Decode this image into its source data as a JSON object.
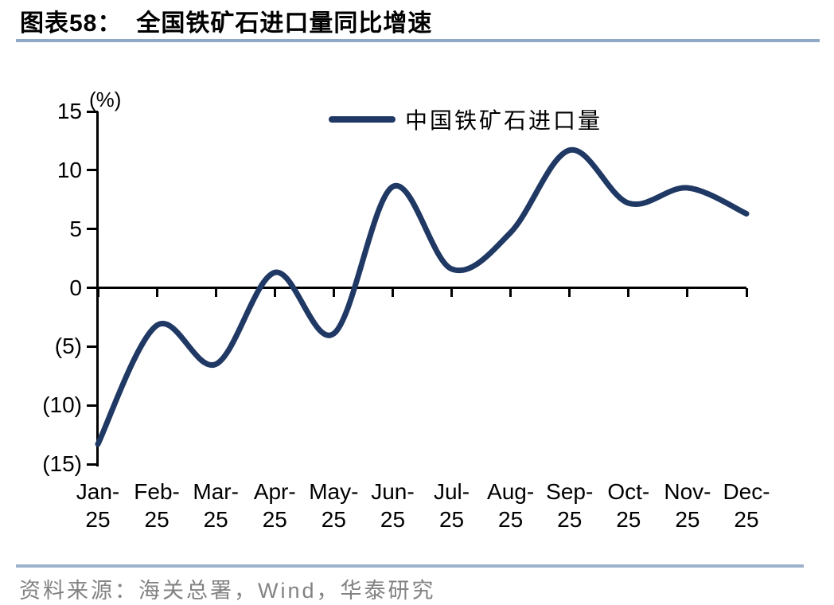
{
  "header": {
    "figure_label": "图表58：",
    "title": "全国铁矿石进口量同比增速"
  },
  "legend": {
    "label": "中国铁矿石进口量"
  },
  "y_axis": {
    "unit": "(%)",
    "tick_labels": [
      "15",
      "10",
      "5",
      "0",
      "(5)",
      "(10)",
      "(15)"
    ],
    "tick_values": [
      15,
      10,
      5,
      0,
      -5,
      -10,
      -15
    ]
  },
  "x_axis": {
    "labels": [
      "Jan-25",
      "Feb-25",
      "Mar-25",
      "Apr-25",
      "May-25",
      "Jun-25",
      "Jul-25",
      "Aug-25",
      "Sep-25",
      "Oct-25",
      "Nov-25",
      "Dec-25"
    ]
  },
  "source": "资料来源：海关总署，Wind，华泰研究",
  "colors": {
    "line": "#1F3864",
    "axis": "#000000",
    "divider_top": "#92A8C8",
    "divider_bottom": "#9DB1CB",
    "source_text": "#828282"
  },
  "chart_data": {
    "type": "line",
    "title": "全国铁矿石进口量同比增速",
    "categories": [
      "Jan-25",
      "Feb-25",
      "Mar-25",
      "Apr-25",
      "May-25",
      "Jun-25",
      "Jul-25",
      "Aug-25",
      "Sep-25",
      "Oct-25",
      "Nov-25",
      "Dec-25"
    ],
    "series": [
      {
        "name": "中国铁矿石进口量",
        "values": [
          -13.3,
          -3.2,
          -6.5,
          1.3,
          -3.9,
          8.6,
          1.6,
          4.7,
          11.7,
          7.2,
          8.5,
          6.3
        ],
        "color": "#1F3864",
        "smooth": true
      }
    ],
    "xlabel": "",
    "ylabel": "(%)",
    "ylim": [
      -15,
      15
    ],
    "ytick_step": 5,
    "grid": false,
    "legend_position": "top-center"
  }
}
